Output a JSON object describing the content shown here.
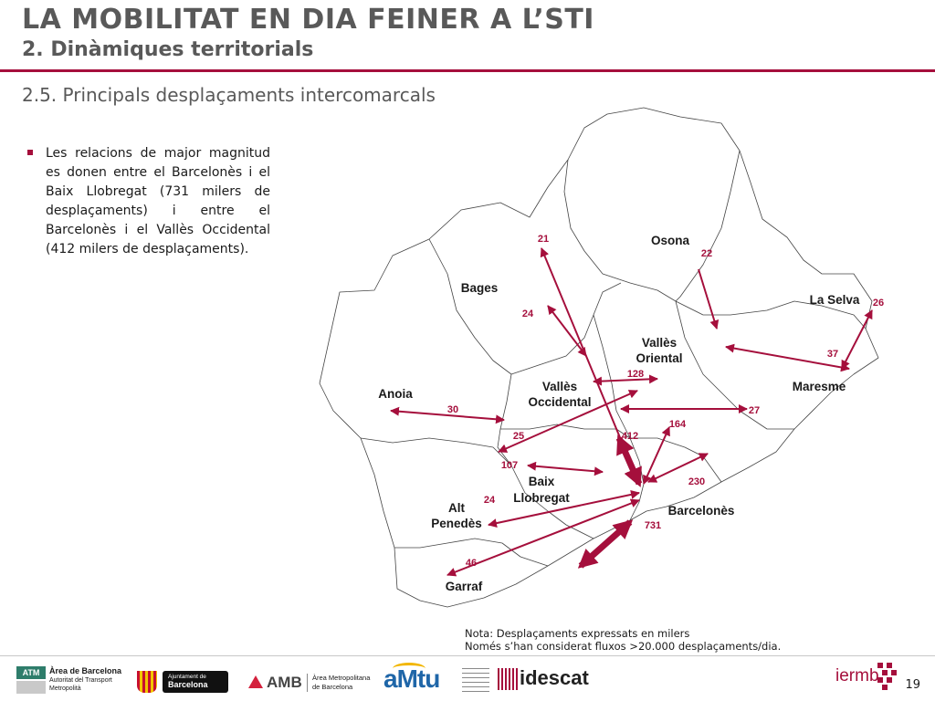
{
  "header": {
    "title": "LA MOBILITAT EN DIA FEINER A L’STI",
    "subtitle": "2. Dinàmiques territorials",
    "section": "2.5. Principals desplaçaments intercomarcals"
  },
  "bullet": "Les relacions de major magnitud es donen entre el Barcelonès i el Baix Llobregat (731 milers de desplaçaments) i entre el Barcelonès i el Vallès Occidental (412 milers de desplaçaments).",
  "regions": {
    "osona": "Osona",
    "bages": "Bages",
    "la_selva": "La Selva",
    "valles_oriental_1": "Vallès",
    "valles_oriental_2": "Oriental",
    "valles_occidental_1": "Vallès",
    "valles_occidental_2": "Occidental",
    "anoia": "Anoia",
    "maresme": "Maresme",
    "baix_llobregat_1": "Baix",
    "baix_llobregat_2": "Llobregat",
    "alt_penedes_1": "Alt",
    "alt_penedes_2": "Penedès",
    "barcelones": "Barcelonès",
    "garraf": "Garraf"
  },
  "flows": {
    "bages_bcn": "21",
    "osona_valles_or": "22",
    "selva_maresme": "26",
    "bages_valles_occ": "24",
    "maresme_valles_or": "37",
    "valles_occ_or": "128",
    "anoia_valles_occ": "30",
    "valles_occ_maresme": "27",
    "baix_valles_occ": "25",
    "valles_or_bcn": "164",
    "valles_occ_bcn": "412",
    "baix_valles_or": "107",
    "maresme_bcn": "230",
    "alt_penedes_bcn": "24",
    "baix_bcn": "731",
    "garraf_bcn": "46"
  },
  "note": {
    "line1": "Nota: Desplaçaments expressats en milers",
    "line2": "Només s’han considerat fluxos >20.000 desplaçaments/dia."
  },
  "footer": {
    "atm_badge": "ATM",
    "atm_line1": "Àrea de Barcelona",
    "atm_line2": "Autoritat del Transport",
    "atm_line3": "Metropolità",
    "ajuntament_line1": "Ajuntament de",
    "ajuntament_line2": "Barcelona",
    "amb": "AMB",
    "amb_line1": "Àrea Metropolitana",
    "amb_line2": "de Barcelona",
    "amtu": "aMtu",
    "idescat": "idescat",
    "iermb": "iermb",
    "page_number": "19"
  },
  "colors": {
    "accent": "#a50f3c",
    "title_gray": "#595959"
  }
}
